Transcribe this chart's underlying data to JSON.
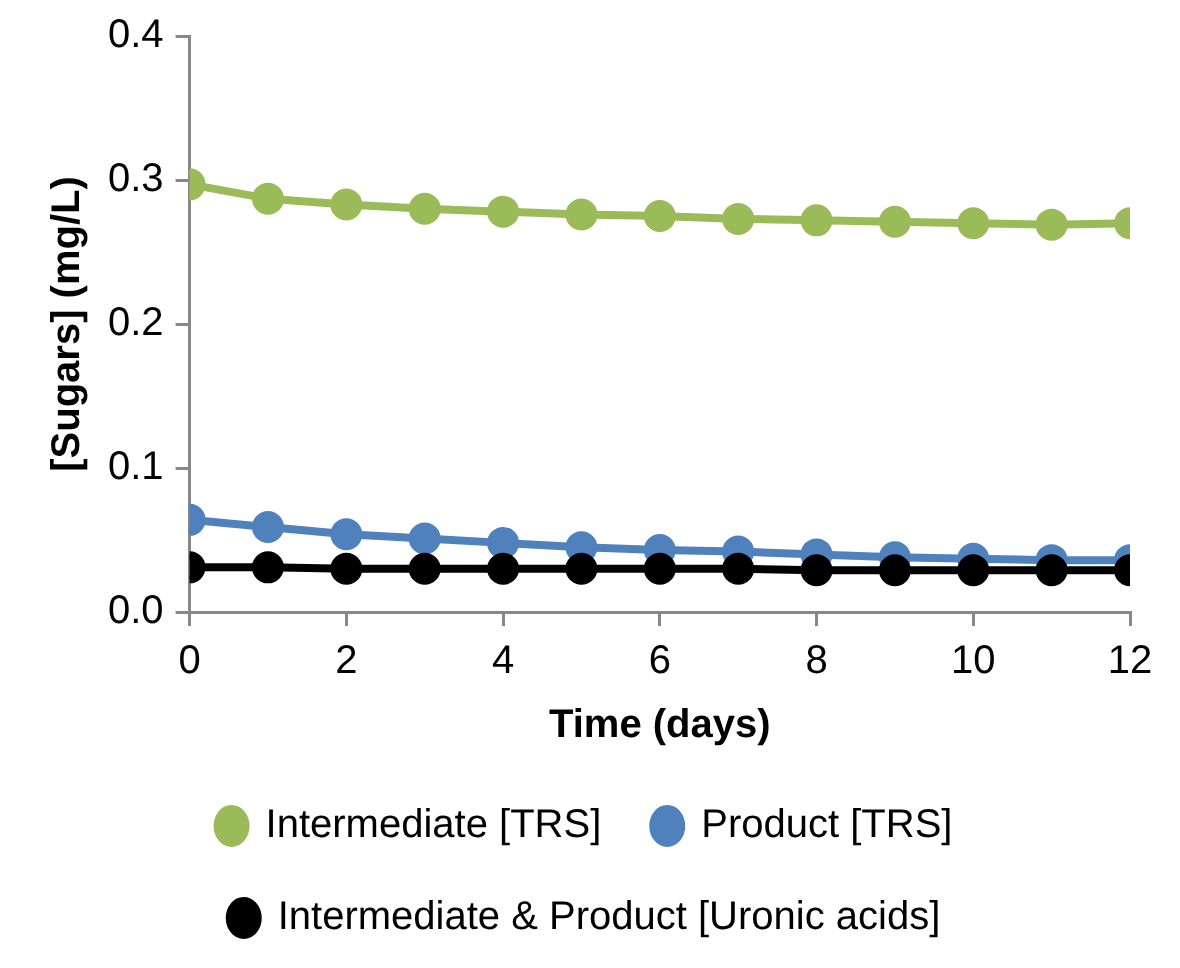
{
  "chart_data": {
    "type": "line",
    "xlabel": "Time (days)",
    "ylabel": "[Sugars] (mg/L)",
    "x": [
      0,
      1,
      2,
      3,
      4,
      5,
      6,
      7,
      8,
      9,
      10,
      11,
      12
    ],
    "xlim": [
      0,
      12
    ],
    "xticks": [
      0,
      2,
      4,
      6,
      8,
      10,
      12
    ],
    "ylim": [
      0,
      0.4
    ],
    "yticks": [
      {
        "value": 0,
        "label": "0.0"
      },
      {
        "value": 0.1,
        "label": "0.1"
      },
      {
        "value": 0.2,
        "label": "0.2"
      },
      {
        "value": 0.3,
        "label": "0.3"
      },
      {
        "value": 0.4,
        "label": "0.4"
      }
    ],
    "series": [
      {
        "name": "Intermediate [TRS]",
        "color": "#9bbb59",
        "values": [
          0.297,
          0.287,
          0.283,
          0.28,
          0.278,
          0.276,
          0.275,
          0.273,
          0.272,
          0.271,
          0.27,
          0.269,
          0.27
        ]
      },
      {
        "name": "Product [TRS]",
        "color": "#4f81bd",
        "values": [
          0.064,
          0.059,
          0.054,
          0.051,
          0.048,
          0.045,
          0.043,
          0.042,
          0.04,
          0.038,
          0.037,
          0.036,
          0.036
        ]
      },
      {
        "name": "Intermediate & Product [Uronic acids]",
        "color": "#000000",
        "values": [
          0.031,
          0.031,
          0.03,
          0.03,
          0.03,
          0.03,
          0.03,
          0.03,
          0.029,
          0.029,
          0.029,
          0.029,
          0.029
        ]
      }
    ],
    "grid": false,
    "legend": "bottom",
    "marker": "circle",
    "line_style": "solid"
  }
}
